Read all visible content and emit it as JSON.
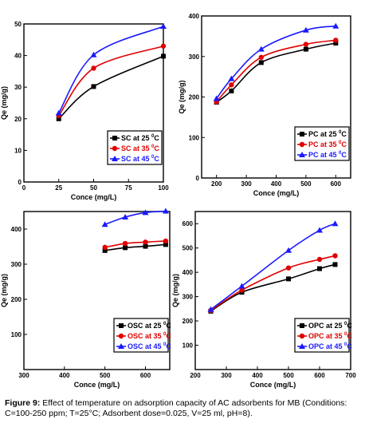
{
  "chart_data": [
    {
      "type": "line",
      "title": "",
      "xlabel": "Conce (mg/L)",
      "ylabel": "Qe (mg/g)",
      "xlim": [
        0,
        100
      ],
      "ylim": [
        0,
        50
      ],
      "xticks": [
        0,
        25,
        50,
        75,
        100
      ],
      "yticks": [
        0,
        10,
        20,
        30,
        40,
        50
      ],
      "legend": "bottom-right",
      "series": [
        {
          "name": "SC at 25",
          "sup": "0",
          "unit": "C",
          "color": "#000000",
          "marker": "square",
          "x": [
            25,
            50,
            100
          ],
          "y": [
            20,
            30.2,
            39.8
          ]
        },
        {
          "name": "SC at 35",
          "sup": "0",
          "unit": "C",
          "color": "#e00000",
          "marker": "circle",
          "x": [
            25,
            50,
            100
          ],
          "y": [
            21,
            36,
            43
          ]
        },
        {
          "name": "SC at 45",
          "sup": "0",
          "unit": "C",
          "color": "#1a1aff",
          "marker": "triangle",
          "x": [
            25,
            50,
            100
          ],
          "y": [
            21.8,
            40.2,
            49.2
          ]
        }
      ]
    },
    {
      "type": "line",
      "title": "",
      "xlabel": "Conce (mg/L)",
      "ylabel": "Qe (mg/g)",
      "xlim": [
        150,
        650
      ],
      "ylim": [
        0,
        400
      ],
      "xticks": [
        200,
        300,
        400,
        500,
        600
      ],
      "yticks": [
        0,
        100,
        200,
        300,
        400
      ],
      "legend": "bottom-right",
      "series": [
        {
          "name": "PC at 25",
          "sup": "0",
          "unit": "C",
          "color": "#000000",
          "marker": "square",
          "x": [
            200,
            250,
            350,
            500,
            600
          ],
          "y": [
            187,
            215,
            285,
            318,
            333
          ]
        },
        {
          "name": "PC at 35",
          "sup": "0",
          "unit": "C",
          "color": "#e00000",
          "marker": "circle",
          "x": [
            200,
            250,
            350,
            500,
            600
          ],
          "y": [
            188,
            230,
            298,
            330,
            340
          ]
        },
        {
          "name": "PC at 45",
          "sup": "0",
          "unit": "C",
          "color": "#1a1aff",
          "marker": "triangle",
          "x": [
            200,
            250,
            350,
            500,
            600
          ],
          "y": [
            196,
            245,
            318,
            365,
            375
          ]
        }
      ]
    },
    {
      "type": "line",
      "title": "",
      "xlabel": "Conce (mg/L)",
      "ylabel": "Qe (mg/g)",
      "xlim": [
        300,
        660
      ],
      "ylim": [
        0,
        450
      ],
      "xticks": [
        300,
        400,
        500,
        600
      ],
      "yticks": [
        100,
        200,
        300,
        400
      ],
      "legend": "bottom-right",
      "series": [
        {
          "name": "OSC at 25",
          "sup": "0",
          "unit": "C",
          "color": "#000000",
          "marker": "square",
          "x": [
            500,
            550,
            600,
            650
          ],
          "y": [
            339,
            347,
            351,
            356
          ]
        },
        {
          "name": "OSC at 35",
          "sup": "0",
          "unit": "C",
          "color": "#e00000",
          "marker": "circle",
          "x": [
            500,
            550,
            600,
            650
          ],
          "y": [
            348,
            359,
            363,
            366
          ]
        },
        {
          "name": "OSC at 45",
          "sup": "0",
          "unit": "C",
          "color": "#1a1aff",
          "marker": "triangle",
          "x": [
            500,
            550,
            600,
            650
          ],
          "y": [
            413,
            434,
            447,
            451
          ]
        }
      ]
    },
    {
      "type": "line",
      "title": "",
      "xlabel": "Conce (mg/L)",
      "ylabel": "Qe (mg/g)",
      "xlim": [
        200,
        700
      ],
      "ylim": [
        0,
        650
      ],
      "xticks": [
        200,
        300,
        400,
        500,
        600,
        700
      ],
      "yticks": [
        100,
        200,
        300,
        400,
        500,
        600
      ],
      "legend": "bottom-right",
      "series": [
        {
          "name": "OPC at 25",
          "sup": "0",
          "unit": "C",
          "color": "#000000",
          "marker": "square",
          "x": [
            250,
            350,
            500,
            600,
            650
          ],
          "y": [
            240,
            318,
            373,
            415,
            432
          ]
        },
        {
          "name": "OPC at 35",
          "sup": "0",
          "unit": "C",
          "color": "#e00000",
          "marker": "circle",
          "x": [
            250,
            350,
            500,
            600,
            650
          ],
          "y": [
            243,
            327,
            418,
            453,
            468
          ]
        },
        {
          "name": "OPC at 45",
          "sup": "0",
          "unit": "C",
          "color": "#1a1aff",
          "marker": "triangle",
          "x": [
            250,
            350,
            500,
            600,
            650
          ],
          "y": [
            247,
            343,
            490,
            573,
            600
          ]
        }
      ]
    }
  ],
  "caption": {
    "label": "Figure 9:",
    "text": " Effect of temperature on adsorption capacity of AC adsorbents for MB (Conditions: C=100-250 ppm; T=25°C; Adsorbent dose=0.025, V=25 ml, pH=8)."
  }
}
